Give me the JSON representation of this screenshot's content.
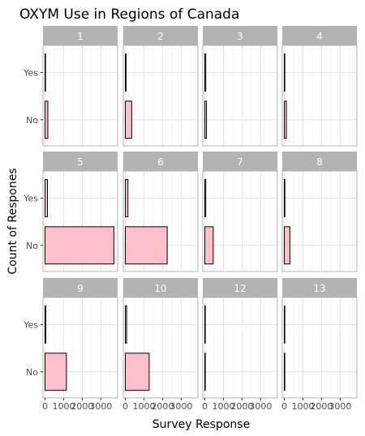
{
  "chart_data": {
    "type": "bar",
    "orientation": "horizontal",
    "title": "OXYM Use in Regions of Canada",
    "xlabel": "Survey Response",
    "ylabel": "Count of Respones",
    "categories": [
      "No",
      "Yes"
    ],
    "xlim": [
      -110,
      3900
    ],
    "x_ticks": [
      0,
      1000,
      2000,
      3000
    ],
    "x_tick_labels": [
      "0",
      "1000",
      "2000",
      "3000"
    ],
    "grid": true,
    "facets": [
      {
        "label": "1",
        "values": {
          "No": 150,
          "Yes": 0
        }
      },
      {
        "label": "2",
        "values": {
          "No": 340,
          "Yes": 40
        }
      },
      {
        "label": "3",
        "values": {
          "No": 90,
          "Yes": 50
        }
      },
      {
        "label": "4",
        "values": {
          "No": 110,
          "Yes": 10
        }
      },
      {
        "label": "5",
        "values": {
          "No": 3700,
          "Yes": 130
        }
      },
      {
        "label": "6",
        "values": {
          "No": 2250,
          "Yes": 140
        }
      },
      {
        "label": "7",
        "values": {
          "No": 450,
          "Yes": 50
        }
      },
      {
        "label": "8",
        "values": {
          "No": 300,
          "Yes": 30
        }
      },
      {
        "label": "9",
        "values": {
          "No": 1150,
          "Yes": 40
        }
      },
      {
        "label": "10",
        "values": {
          "No": 1280,
          "Yes": 70
        }
      },
      {
        "label": "12",
        "values": {
          "No": 20,
          "Yes": 0
        }
      },
      {
        "label": "13",
        "values": {
          "No": 20,
          "Yes": 0
        }
      }
    ],
    "colors": {
      "bar_fill": "#ffc0cb",
      "bar_stroke": "#000000",
      "strip": "#b3b3b3",
      "grid": "#e5e5e5",
      "panel_border": "#b3b3b3"
    }
  }
}
